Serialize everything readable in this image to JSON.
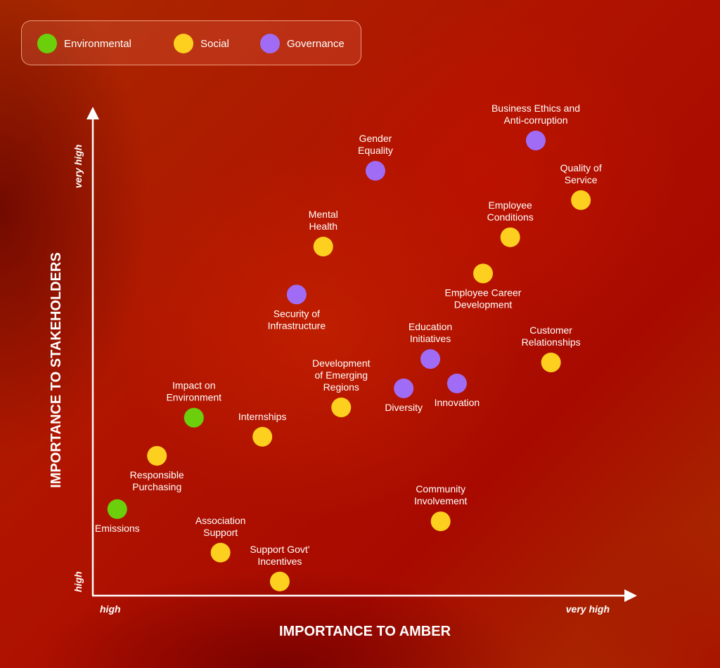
{
  "chart_data": {
    "type": "scatter",
    "title": "",
    "xlabel": "IMPORTANCE TO AMBER",
    "ylabel": "IMPORTANCE TO STAKEHOLDERS",
    "x_ticks": [
      "high",
      "very high"
    ],
    "y_ticks": [
      "high",
      "very high"
    ],
    "xlim": [
      0,
      10
    ],
    "ylim": [
      0,
      10
    ],
    "grid": false,
    "legend_position": "top-left",
    "series": [
      {
        "name": "Environmental",
        "color": "#6ccf0c"
      },
      {
        "name": "Social",
        "color": "#fdd01f"
      },
      {
        "name": "Governance",
        "color": "#a06cf6"
      }
    ],
    "points": [
      {
        "label": [
          "Business Ethics and",
          "Anti-corruption"
        ],
        "series": "Governance",
        "x": 8.15,
        "y": 9.31,
        "label_side": "above"
      },
      {
        "label": [
          "Gender",
          "Equality"
        ],
        "series": "Governance",
        "x": 5.2,
        "y": 8.69,
        "label_side": "above"
      },
      {
        "label": [
          "Quality of",
          "Service"
        ],
        "series": "Social",
        "x": 8.98,
        "y": 8.09,
        "label_side": "above"
      },
      {
        "label": [
          "Employee",
          "Conditions"
        ],
        "series": "Social",
        "x": 7.68,
        "y": 7.33,
        "label_side": "above"
      },
      {
        "label": [
          "Mental",
          "Health"
        ],
        "series": "Social",
        "x": 4.24,
        "y": 7.14,
        "label_side": "above"
      },
      {
        "label": [
          "Employee Career",
          "Development"
        ],
        "series": "Social",
        "x": 7.18,
        "y": 6.59,
        "label_side": "below"
      },
      {
        "label": [
          "Security of",
          "Infrastructure"
        ],
        "series": "Governance",
        "x": 3.75,
        "y": 6.16,
        "label_side": "below"
      },
      {
        "label": [
          "Education",
          "Initiatives"
        ],
        "series": "Governance",
        "x": 6.21,
        "y": 4.84,
        "label_side": "above"
      },
      {
        "label": [
          "Customer",
          "Relationships"
        ],
        "series": "Social",
        "x": 8.43,
        "y": 4.77,
        "label_side": "above"
      },
      {
        "label": [
          "Innovation"
        ],
        "series": "Governance",
        "x": 6.7,
        "y": 4.34,
        "label_side": "below"
      },
      {
        "label": [
          "Diversity"
        ],
        "series": "Governance",
        "x": 5.72,
        "y": 4.24,
        "label_side": "below"
      },
      {
        "label": [
          "Development",
          "of Emerging",
          "Regions"
        ],
        "series": "Social",
        "x": 4.57,
        "y": 3.85,
        "label_side": "above"
      },
      {
        "label": [
          "Impact on",
          "Environment"
        ],
        "series": "Environmental",
        "x": 1.86,
        "y": 3.64,
        "label_side": "above"
      },
      {
        "label": [
          "Internships"
        ],
        "series": "Social",
        "x": 3.12,
        "y": 3.25,
        "label_side": "above"
      },
      {
        "label": [
          "Responsible",
          "Purchasing"
        ],
        "series": "Social",
        "x": 1.18,
        "y": 2.86,
        "label_side": "below"
      },
      {
        "label": [
          "Emissions"
        ],
        "series": "Environmental",
        "x": 0.45,
        "y": 1.77,
        "label_side": "below"
      },
      {
        "label": [
          "Community",
          "Involvement"
        ],
        "series": "Social",
        "x": 6.4,
        "y": 1.52,
        "label_side": "above"
      },
      {
        "label": [
          "Association",
          "Support"
        ],
        "series": "Social",
        "x": 2.35,
        "y": 0.88,
        "label_side": "above"
      },
      {
        "label": [
          "Support Govt'",
          "Incentives"
        ],
        "series": "Social",
        "x": 3.44,
        "y": 0.29,
        "label_side": "above"
      }
    ]
  }
}
